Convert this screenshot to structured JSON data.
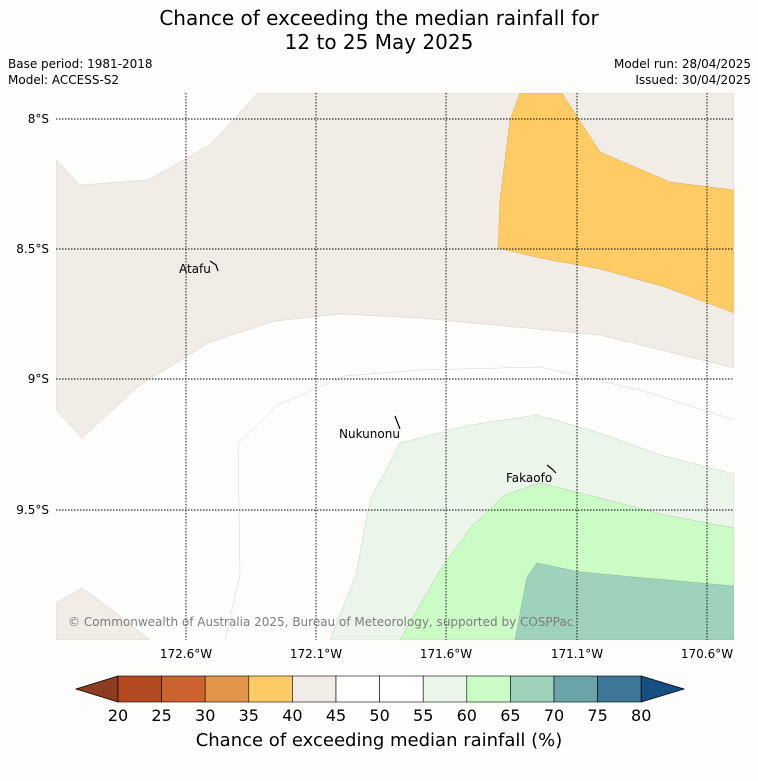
{
  "header": {
    "title_line1": "Chance of exceeding the median rainfall for",
    "title_line2": "12 to 25 May 2025",
    "base_period": "Base period: 1981-2018",
    "model": "Model: ACCESS-S2",
    "model_run": "Model run: 28/04/2025",
    "issued": "Issued: 30/04/2025"
  },
  "map": {
    "lat_labels": [
      "8°S",
      "8.5°S",
      "9°S",
      "9.5°S"
    ],
    "lon_labels": [
      "172.6°W",
      "172.1°W",
      "171.6°W",
      "171.1°W",
      "170.6°W"
    ],
    "places": [
      {
        "name": "Atafu"
      },
      {
        "name": "Nukunonu"
      },
      {
        "name": "Fakaofo"
      }
    ],
    "copyright": "© Commonwealth of Australia 2025, Bureau of Meteorology, supported by COSPPac"
  },
  "colorbar": {
    "ticks": [
      "20",
      "25",
      "30",
      "35",
      "40",
      "45",
      "50",
      "55",
      "60",
      "65",
      "70",
      "75",
      "80"
    ],
    "colors": [
      "#8e3b1f",
      "#b44a24",
      "#cc6330",
      "#e39649",
      "#fecb65",
      "#f2ece6",
      "#ffffff",
      "#ffffff",
      "#ebf5ea",
      "#cbfcc6",
      "#9ed2bb",
      "#6aa3a8",
      "#3e7795",
      "#174f84"
    ],
    "title": "Chance of exceeding median rainfall (%)"
  }
}
